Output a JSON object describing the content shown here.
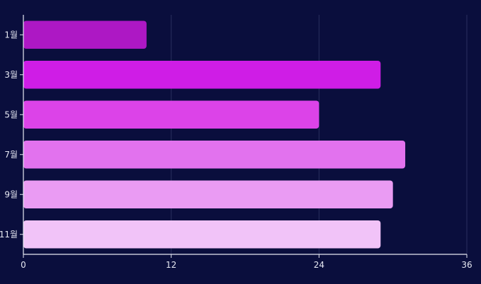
{
  "chart_data": {
    "type": "bar",
    "orientation": "horizontal",
    "title": "",
    "xlabel": "",
    "ylabel": "",
    "categories": [
      "1월",
      "3월",
      "5월",
      "7월",
      "9월",
      "11월"
    ],
    "values": [
      10,
      29,
      24,
      31,
      30,
      29
    ],
    "bar_colors": [
      "#ad18c4",
      "#cf1de6",
      "#dc43e8",
      "#e272ee",
      "#ea9bf3",
      "#f1c3f8"
    ],
    "xlim": [
      0,
      36
    ],
    "x_ticks": [
      0,
      12,
      24,
      36
    ],
    "grid": true,
    "legend": "none"
  },
  "colors": {
    "background": "#0a0e3d",
    "axis": "#e6e8f2",
    "grid": "#2a2f5e"
  }
}
